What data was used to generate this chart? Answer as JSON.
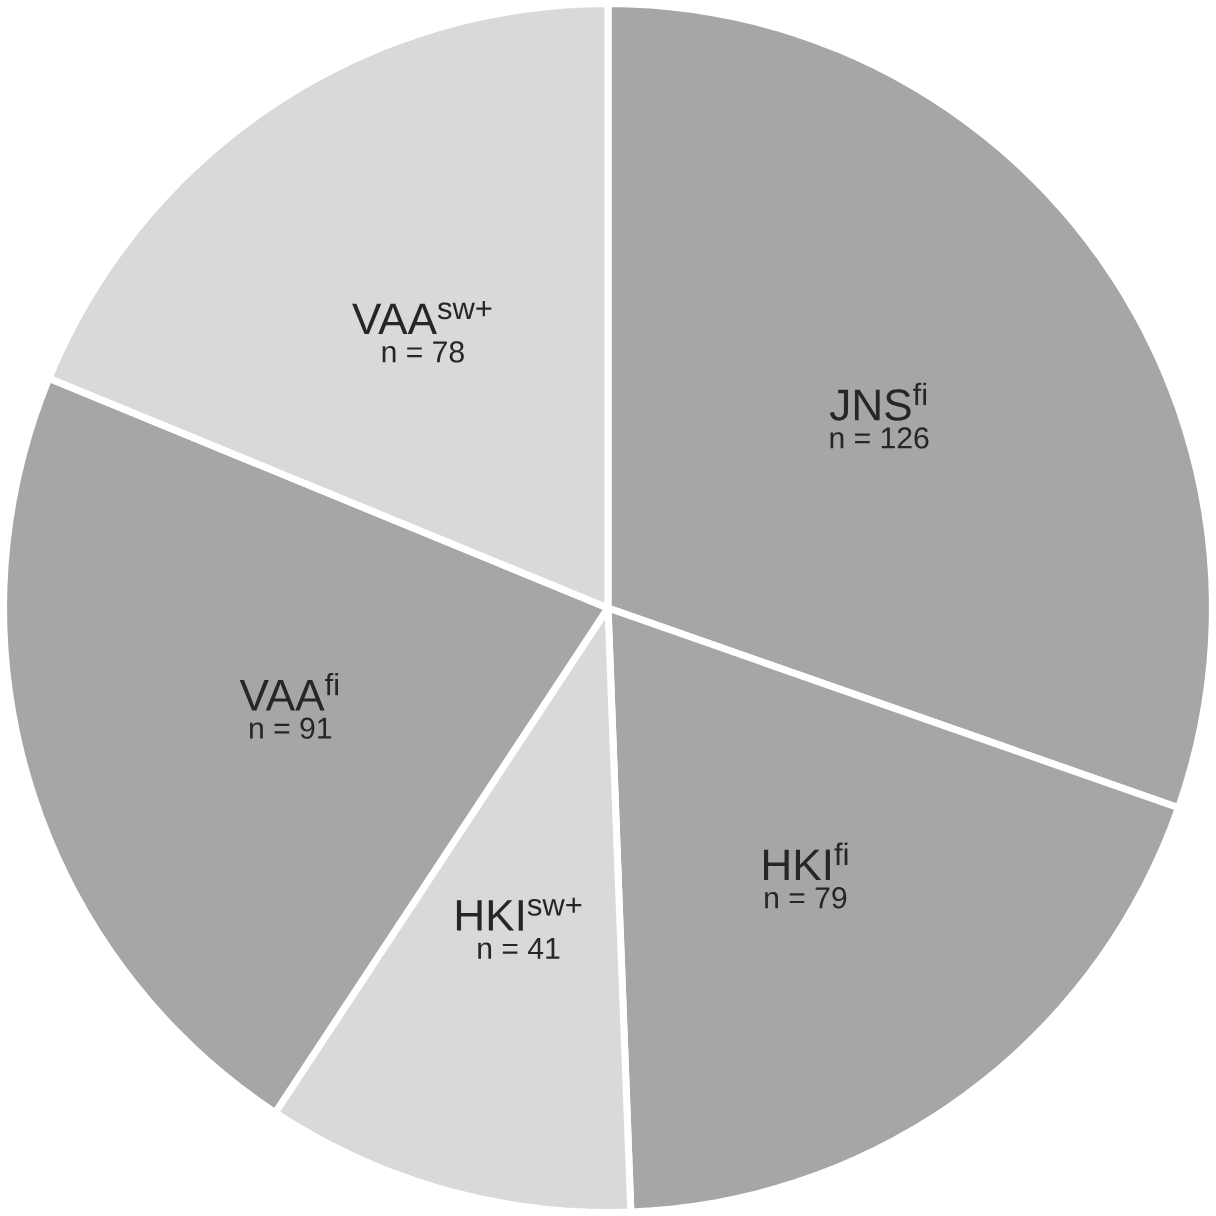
{
  "chart_data": {
    "type": "pie",
    "categories": [
      "JNS$^{fi}$",
      "HKI$^{fi}$",
      "HKI$^{sw+}$",
      "VAA$^{fi}$",
      "VAA$^{sw+}$"
    ],
    "values": [
      126,
      79,
      41,
      91,
      78
    ],
    "value_labels": [
      "n = 126",
      "n = 79",
      "n = 41",
      "n = 91",
      "n = 78"
    ],
    "colors": [
      "#a6a6a6",
      "#a6a6a6",
      "#d9d9d9",
      "#a6a6a6",
      "#d9d9d9"
    ]
  }
}
